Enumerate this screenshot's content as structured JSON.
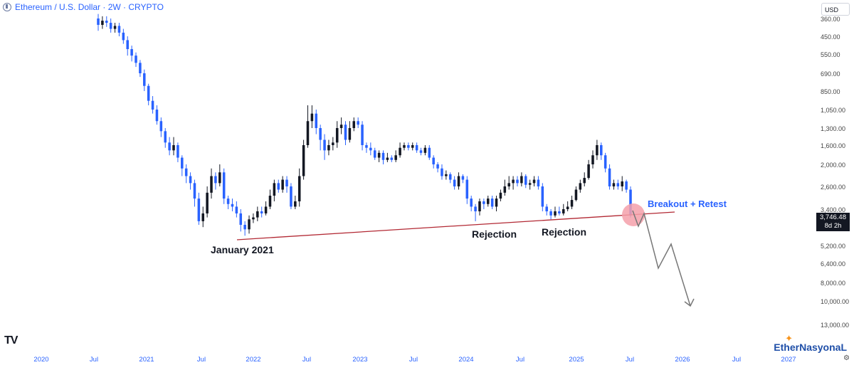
{
  "header": {
    "title": "Ethereum / U.S. Dollar · 2W · CRYPTO",
    "currency": "USD"
  },
  "brand": {
    "logo": "TV",
    "watermark": "EtherNasyonaL"
  },
  "price_label": {
    "value": "3,746.48",
    "countdown": "8d 2h"
  },
  "colors": {
    "up": "#131722",
    "down": "#2962ff",
    "trendline": "#b22833",
    "highlight": "#f4a0aa",
    "projection": "#777777"
  },
  "chart_data": {
    "type": "candlestick",
    "title": "Ethereum / U.S. Dollar · 2W · CRYPTO",
    "y_axis": {
      "inverted": true,
      "scale": "log",
      "tick_labels": [
        "360.00",
        "450.00",
        "550.00",
        "690.00",
        "850.00",
        "1,050.00",
        "1,300.00",
        "1,600.00",
        "2,000.00",
        "2,600.00",
        "3,400.00",
        "4,200.00",
        "5,200.00",
        "6,400.00",
        "8,000.00",
        "10,000.00",
        "13,000.00"
      ],
      "range": [
        310,
        15000
      ]
    },
    "x_axis": {
      "tick_labels": [
        "2020",
        "Jul",
        "2021",
        "Jul",
        "2022",
        "Jul",
        "2023",
        "Jul",
        "2024",
        "Jul",
        "2025",
        "Jul",
        "2026",
        "Jul",
        "2027"
      ]
    },
    "candles_y_px_note": "close values approximate, plotted on inverted log scale",
    "candles": [
      [
        360,
        390,
        340,
        420
      ],
      [
        390,
        370,
        350,
        410
      ],
      [
        370,
        380,
        350,
        400
      ],
      [
        380,
        410,
        360,
        430
      ],
      [
        410,
        395,
        380,
        430
      ],
      [
        395,
        430,
        380,
        450
      ],
      [
        430,
        470,
        410,
        490
      ],
      [
        470,
        520,
        450,
        560
      ],
      [
        520,
        560,
        500,
        600
      ],
      [
        560,
        610,
        540,
        640
      ],
      [
        610,
        690,
        590,
        720
      ],
      [
        690,
        800,
        660,
        850
      ],
      [
        800,
        950,
        780,
        1000
      ],
      [
        950,
        1050,
        900,
        1100
      ],
      [
        1050,
        1200,
        1000,
        1250
      ],
      [
        1200,
        1350,
        1150,
        1450
      ],
      [
        1350,
        1550,
        1300,
        1650
      ],
      [
        1550,
        1700,
        1450,
        1800
      ],
      [
        1700,
        1600,
        1450,
        1800
      ],
      [
        1600,
        1850,
        1550,
        1950
      ],
      [
        1850,
        2100,
        1800,
        2300
      ],
      [
        2100,
        2300,
        2000,
        2500
      ],
      [
        2300,
        2500,
        2200,
        2700
      ],
      [
        2500,
        3000,
        2400,
        3300
      ],
      [
        3000,
        4000,
        2800,
        4200
      ],
      [
        4000,
        3600,
        3300,
        4300
      ],
      [
        3600,
        2800,
        2600,
        3800
      ],
      [
        2800,
        2300,
        2100,
        3000
      ],
      [
        2300,
        2500,
        2200,
        2700
      ],
      [
        2500,
        2200,
        2000,
        2600
      ],
      [
        2200,
        3000,
        2100,
        3200
      ],
      [
        3000,
        3200,
        2900,
        3400
      ],
      [
        3200,
        3300,
        3000,
        3500
      ],
      [
        3300,
        3600,
        3100,
        3800
      ],
      [
        3600,
        4200,
        3400,
        4500
      ],
      [
        4200,
        4400,
        4000,
        4700
      ],
      [
        4400,
        3900,
        3700,
        4600
      ],
      [
        3900,
        3800,
        3600,
        4100
      ],
      [
        3800,
        3500,
        3300,
        4000
      ],
      [
        3500,
        3600,
        3300,
        3800
      ],
      [
        3600,
        3300,
        3100,
        3700
      ],
      [
        3300,
        2900,
        2700,
        3400
      ],
      [
        2900,
        2500,
        2400,
        3100
      ],
      [
        2500,
        2700,
        2400,
        2800
      ],
      [
        2700,
        2400,
        2300,
        2800
      ],
      [
        2400,
        2600,
        2300,
        2800
      ],
      [
        2600,
        3300,
        2500,
        3400
      ],
      [
        3300,
        3100,
        2900,
        3400
      ],
      [
        3100,
        2300,
        2100,
        3300
      ],
      [
        2300,
        1600,
        1500,
        2400
      ],
      [
        1600,
        1200,
        1000,
        1650
      ],
      [
        1200,
        1100,
        1000,
        1300
      ],
      [
        1100,
        1300,
        1050,
        1400
      ],
      [
        1300,
        1500,
        1250,
        1700
      ],
      [
        1500,
        1700,
        1400,
        1900
      ],
      [
        1700,
        1600,
        1500,
        1800
      ],
      [
        1600,
        1550,
        1450,
        1700
      ],
      [
        1550,
        1300,
        1200,
        1650
      ],
      [
        1300,
        1250,
        1150,
        1400
      ],
      [
        1250,
        1500,
        1200,
        1600
      ],
      [
        1500,
        1300,
        1200,
        1550
      ],
      [
        1300,
        1200,
        1150,
        1350
      ],
      [
        1200,
        1250,
        1150,
        1300
      ],
      [
        1250,
        1600,
        1200,
        1700
      ],
      [
        1600,
        1650,
        1550,
        1750
      ],
      [
        1650,
        1700,
        1550,
        1800
      ],
      [
        1700,
        1850,
        1650,
        1900
      ],
      [
        1850,
        1750,
        1700,
        1950
      ],
      [
        1750,
        1900,
        1700,
        2000
      ],
      [
        1900,
        1850,
        1750,
        1950
      ],
      [
        1850,
        1900,
        1800,
        1950
      ],
      [
        1900,
        1800,
        1700,
        1950
      ],
      [
        1800,
        1650,
        1550,
        1850
      ],
      [
        1650,
        1600,
        1550,
        1700
      ],
      [
        1600,
        1650,
        1550,
        1700
      ],
      [
        1650,
        1600,
        1550,
        1700
      ],
      [
        1600,
        1700,
        1550,
        1750
      ],
      [
        1700,
        1750,
        1650,
        1800
      ],
      [
        1750,
        1650,
        1600,
        1800
      ],
      [
        1650,
        1850,
        1600,
        1900
      ],
      [
        1850,
        2000,
        1800,
        2100
      ],
      [
        2000,
        2100,
        1950,
        2200
      ],
      [
        2100,
        2300,
        2000,
        2400
      ],
      [
        2300,
        2250,
        2150,
        2400
      ],
      [
        2250,
        2400,
        2200,
        2500
      ],
      [
        2400,
        2600,
        2300,
        2700
      ],
      [
        2600,
        2300,
        2200,
        2700
      ],
      [
        2300,
        2400,
        2250,
        2500
      ],
      [
        2400,
        3000,
        2300,
        3200
      ],
      [
        3000,
        3300,
        2900,
        3500
      ],
      [
        3300,
        3500,
        3200,
        4000
      ],
      [
        3500,
        3100,
        3000,
        3700
      ],
      [
        3100,
        3200,
        3000,
        3400
      ],
      [
        3200,
        3000,
        2900,
        3300
      ],
      [
        3000,
        3300,
        2900,
        3400
      ],
      [
        3300,
        3000,
        2900,
        3500
      ],
      [
        3000,
        2800,
        2700,
        3100
      ],
      [
        2800,
        2600,
        2400,
        2900
      ],
      [
        2600,
        2500,
        2300,
        2700
      ],
      [
        2500,
        2400,
        2300,
        2700
      ],
      [
        2400,
        2500,
        2300,
        2600
      ],
      [
        2500,
        2300,
        2200,
        2600
      ],
      [
        2300,
        2550,
        2250,
        2650
      ],
      [
        2550,
        2500,
        2400,
        2700
      ],
      [
        2500,
        2400,
        2300,
        2600
      ],
      [
        2400,
        2600,
        2300,
        2700
      ],
      [
        2600,
        3300,
        2500,
        3500
      ],
      [
        3300,
        3500,
        3200,
        3700
      ],
      [
        3500,
        3700,
        3400,
        3900
      ],
      [
        3700,
        3500,
        3300,
        3800
      ],
      [
        3500,
        3600,
        3300,
        3700
      ],
      [
        3600,
        3400,
        3200,
        3700
      ],
      [
        3400,
        3300,
        3100,
        3500
      ],
      [
        3300,
        3050,
        2900,
        3400
      ],
      [
        3050,
        2700,
        2600,
        3100
      ],
      [
        2700,
        2500,
        2400,
        2800
      ],
      [
        2500,
        2350,
        2200,
        2600
      ],
      [
        2350,
        2000,
        1900,
        2400
      ],
      [
        2000,
        1800,
        1700,
        2100
      ],
      [
        1800,
        1600,
        1500,
        1900
      ],
      [
        1600,
        1800,
        1550,
        1900
      ],
      [
        1800,
        2100,
        1750,
        2200
      ],
      [
        2100,
        2600,
        2000,
        2700
      ],
      [
        2600,
        2500,
        2400,
        2700
      ],
      [
        2500,
        2600,
        2400,
        2700
      ],
      [
        2600,
        2450,
        2300,
        2750
      ],
      [
        2450,
        2700,
        2400,
        2800
      ],
      [
        2700,
        3700,
        2600,
        3800
      ]
    ],
    "annotations": [
      "January 2021",
      "Rejection",
      "Rejection",
      "Breakout + Retest"
    ]
  }
}
